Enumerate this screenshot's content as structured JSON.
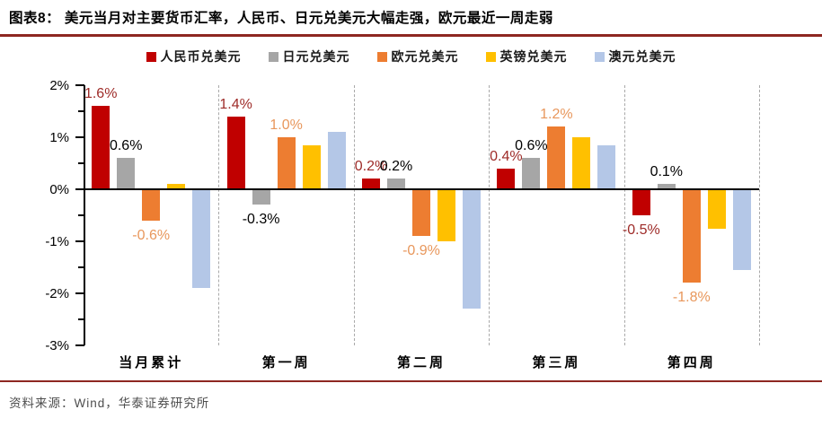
{
  "header": {
    "title": "图表8：  美元当月对主要货币汇率，人民币、日元兑美元大幅走强，欧元最近一周走弱"
  },
  "footer": {
    "source": "资料来源：Wind，华泰证券研究所"
  },
  "colors": {
    "rule_red": "#8e2721",
    "axis_black": "#000000",
    "separator_gray": "#a9a9a9"
  },
  "chart_data": {
    "type": "bar",
    "title": "美元当月对主要货币汇率",
    "categories": [
      "当月累计",
      "第一周",
      "第二周",
      "第三周",
      "第四周"
    ],
    "series": [
      {
        "name": "人民币兑美元",
        "color": "#c00000",
        "label_color": "#9e2b28",
        "values": [
          1.6,
          1.4,
          0.2,
          0.4,
          -0.5
        ],
        "labels": [
          "1.6%",
          "1.4%",
          "0.2%",
          "0.4%",
          "-0.5%"
        ]
      },
      {
        "name": "日元兑美元",
        "color": "#a6a6a6",
        "label_color": "#000000",
        "values": [
          0.6,
          -0.3,
          0.2,
          0.6,
          0.1
        ],
        "labels": [
          "0.6%",
          "-0.3%",
          "0.2%",
          "0.6%",
          "0.1%"
        ]
      },
      {
        "name": "欧元兑美元",
        "color": "#ed7d31",
        "label_color": "#e8975c",
        "values": [
          -0.6,
          1.0,
          -0.9,
          1.2,
          -1.8
        ],
        "labels": [
          "-0.6%",
          "1.0%",
          "-0.9%",
          "1.2%",
          "-1.8%"
        ]
      },
      {
        "name": "英镑兑美元",
        "color": "#ffc000",
        "label_color": null,
        "values": [
          0.1,
          0.85,
          -1.0,
          1.0,
          -0.75
        ],
        "labels": [
          null,
          null,
          null,
          null,
          null
        ]
      },
      {
        "name": "澳元兑美元",
        "color": "#b4c7e7",
        "label_color": null,
        "values": [
          -1.9,
          1.1,
          -2.3,
          0.85,
          -1.55
        ],
        "labels": [
          null,
          null,
          null,
          null,
          null
        ]
      }
    ],
    "ylim": [
      -3,
      2
    ],
    "ytick_step": 1,
    "ytick_labels": [
      "2%",
      "1%",
      "0%",
      "-1%",
      "-2%",
      "-3%"
    ],
    "minor_tick_step": 0.5,
    "grid": false,
    "legend_position": "top"
  }
}
